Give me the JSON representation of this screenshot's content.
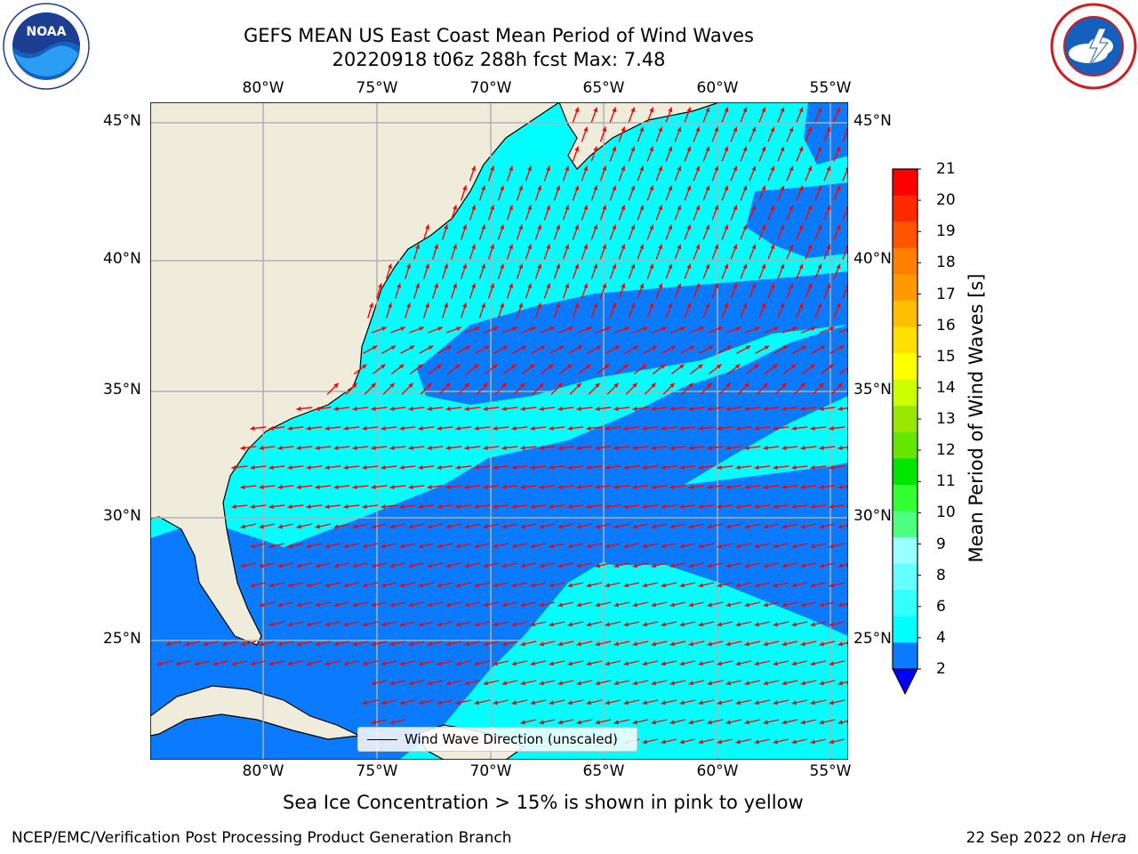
{
  "title": {
    "line1": "GEFS MEAN US East Coast Mean Period of Wind Waves",
    "line2": "20220918 t06z 288h fcst   Max: 7.48"
  },
  "axes": {
    "lon_labels": [
      "80°W",
      "75°W",
      "70°W",
      "65°W",
      "60°W",
      "55°W"
    ],
    "lat_labels": [
      "45°N",
      "40°N",
      "35°N",
      "30°N",
      "25°N"
    ],
    "lon_range": [
      -85,
      -54.3
    ],
    "lat_range": [
      20.5,
      46
    ],
    "grid": true
  },
  "colorbar": {
    "label": "Mean Period of Wind Waves [s]",
    "ticks": [
      "2",
      "4",
      "6",
      "8",
      "9",
      "10",
      "11",
      "12",
      "13",
      "14",
      "15",
      "16",
      "17",
      "18",
      "19",
      "20",
      "21"
    ],
    "colors": [
      "#0a7bff",
      "#00ffff",
      "#33ffff",
      "#66ffff",
      "#99ffff",
      "#4cff80",
      "#33ff33",
      "#00e600",
      "#66e600",
      "#99e600",
      "#ccff00",
      "#ffff00",
      "#ffe000",
      "#ffbf00",
      "#ff9900",
      "#ff8000",
      "#ff5500",
      "#ff2a00",
      "#ff0000"
    ],
    "extend_color": "#0000ff"
  },
  "legend": {
    "text": "Wind Wave Direction (unscaled)"
  },
  "note": "Sea Ice Concentration > 15% is shown in pink to yellow",
  "footer": {
    "left": "NCEP/EMC/Verification Post Processing Product Generation Branch",
    "date": "22 Sep 2022 on",
    "machine": "Hera"
  },
  "logos": {
    "noaa": "NOAA",
    "nws": "NATIONAL WEATHER SERVICE"
  },
  "colors": {
    "land": "#efecdc",
    "low_period": "#0a7bff",
    "mid_period": "#00ffff",
    "arrow": "#ff0000",
    "grid": "#b0b0b0"
  }
}
